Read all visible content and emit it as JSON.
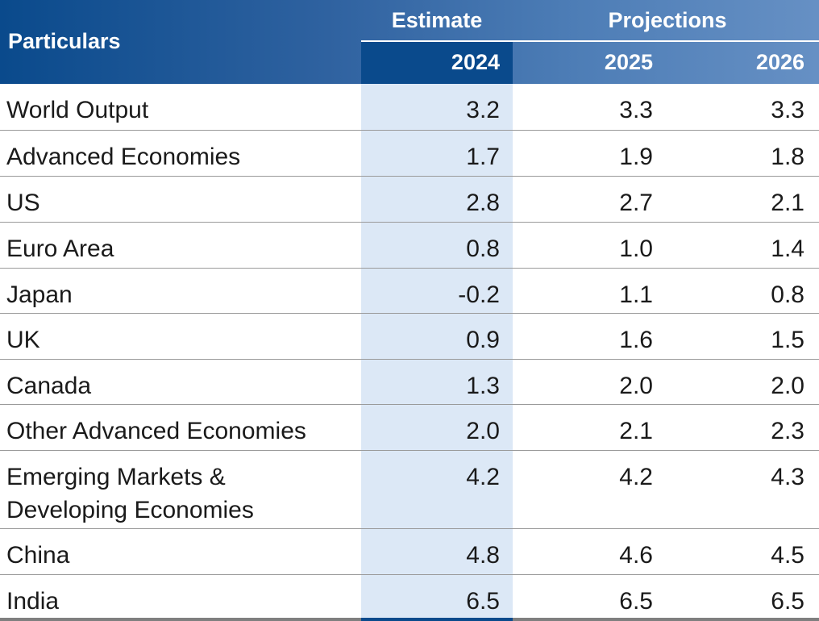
{
  "header": {
    "particulars": "Particulars",
    "estimate": "Estimate",
    "projections": "Projections",
    "years": [
      "2024",
      "2025",
      "2026"
    ]
  },
  "rows": [
    {
      "label": "World Output",
      "values": [
        "3.2",
        "3.3",
        "3.3"
      ]
    },
    {
      "label": "Advanced Economies",
      "values": [
        "1.7",
        "1.9",
        "1.8"
      ]
    },
    {
      "label": "US",
      "values": [
        "2.8",
        "2.7",
        "2.1"
      ]
    },
    {
      "label": "Euro Area",
      "values": [
        "0.8",
        "1.0",
        "1.4"
      ]
    },
    {
      "label": "Japan",
      "values": [
        "-0.2",
        "1.1",
        "0.8"
      ]
    },
    {
      "label": "UK",
      "values": [
        "0.9",
        "1.6",
        "1.5"
      ]
    },
    {
      "label": "Canada",
      "values": [
        "1.3",
        "2.0",
        "2.0"
      ]
    },
    {
      "label": "Other Advanced Economies",
      "values": [
        "2.0",
        "2.1",
        "2.3"
      ]
    },
    {
      "label": "Emerging Markets & Developing Economies",
      "values": [
        "4.2",
        "4.2",
        "4.3"
      ]
    },
    {
      "label": "China",
      "values": [
        "4.8",
        "4.6",
        "4.5"
      ]
    },
    {
      "label": "India",
      "values": [
        "6.5",
        "6.5",
        "6.5"
      ]
    }
  ],
  "colors": {
    "header_dark": "#0a4a8c",
    "header_light": "#6690c4",
    "estimate_column": "#dce8f6",
    "row_rule": "#9a9a9a"
  }
}
